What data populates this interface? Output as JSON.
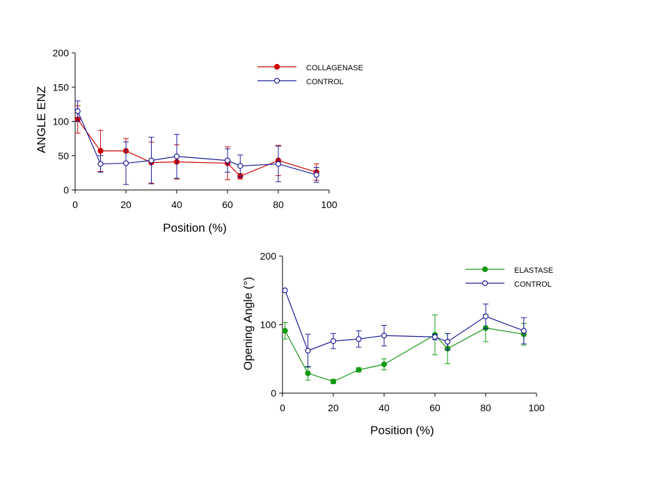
{
  "chart_data": [
    {
      "type": "line",
      "xlabel": "Position (%)",
      "ylabel": "ANGLE ENZ",
      "xlim": [
        0,
        100
      ],
      "ylim": [
        0,
        200
      ],
      "xticks": [
        0,
        20,
        40,
        60,
        80,
        100
      ],
      "yticks": [
        0,
        50,
        100,
        150,
        200
      ],
      "legend_position": "top-right",
      "series": [
        {
          "name": "COLLAGENASE",
          "color": "#cc0000",
          "marker": "filled-circle",
          "x": [
            1,
            10,
            20,
            30,
            40,
            60,
            65,
            80,
            95
          ],
          "y": [
            103,
            57,
            57,
            40,
            41,
            39,
            20,
            43,
            26
          ],
          "err": [
            20,
            30,
            18,
            30,
            25,
            24,
            4,
            22,
            12
          ]
        },
        {
          "name": "CONTROL",
          "color": "#1a1a99",
          "marker": "open-circle",
          "x": [
            1,
            10,
            20,
            30,
            40,
            60,
            65,
            80,
            95
          ],
          "y": [
            115,
            38,
            39,
            43,
            49,
            43,
            35,
            38,
            22
          ],
          "err": [
            15,
            12,
            31,
            34,
            32,
            17,
            16,
            26,
            11
          ]
        }
      ]
    },
    {
      "type": "line",
      "xlabel": "Position (%)",
      "ylabel": "Opening Angle (°)",
      "xlim": [
        0,
        100
      ],
      "ylim": [
        0,
        200
      ],
      "xticks": [
        0,
        20,
        40,
        60,
        80,
        100
      ],
      "yticks": [
        0,
        100,
        200
      ],
      "legend_position": "top-right",
      "series": [
        {
          "name": "ELASTASE",
          "color": "#119911",
          "marker": "filled-circle",
          "x": [
            1,
            10,
            20,
            30,
            40,
            60,
            65,
            80,
            95
          ],
          "y": [
            91,
            29,
            17,
            34,
            42,
            85,
            65,
            95,
            86
          ],
          "err": [
            12,
            10,
            3,
            3,
            8,
            29,
            22,
            20,
            16
          ]
        },
        {
          "name": "CONTROL",
          "color": "#1a1a99",
          "marker": "open-circle",
          "x": [
            1,
            10,
            20,
            30,
            40,
            60,
            65,
            80,
            95
          ],
          "y": [
            150,
            62,
            76,
            79,
            84,
            82,
            75,
            112,
            91
          ],
          "err": [
            0,
            24,
            11,
            12,
            15,
            4,
            12,
            18,
            19
          ]
        }
      ]
    }
  ]
}
